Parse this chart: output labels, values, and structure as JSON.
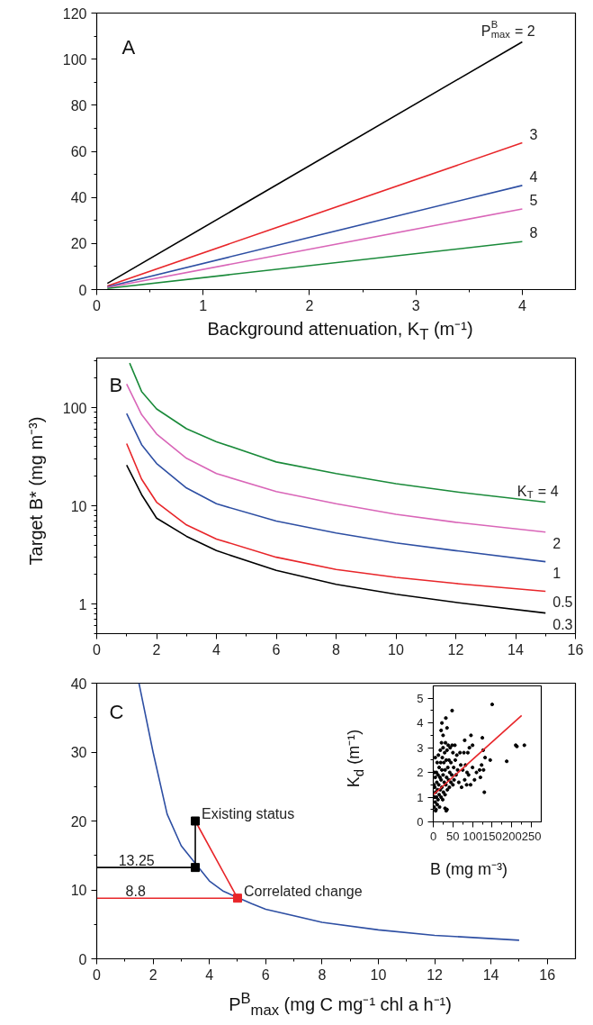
{
  "chart_data": [
    {
      "type": "line",
      "title": "A",
      "xlabel": "Background attenuation, K$_{T}$ (m⁻¹)",
      "xlim": [
        0,
        4.5
      ],
      "ylim": [
        0,
        120
      ],
      "xticks": [
        0,
        1,
        2,
        3,
        4
      ],
      "yticks": [
        0,
        20,
        40,
        60,
        80,
        100,
        120
      ],
      "series": [
        {
          "name": "P$^{B}$$_{max}$ = 2",
          "color": "#000000",
          "x": [
            0.1,
            4
          ],
          "values": [
            2.7,
            107.5
          ]
        },
        {
          "name": "3",
          "color": "#e8262a",
          "x": [
            0.1,
            4
          ],
          "values": [
            1.6,
            63.7
          ]
        },
        {
          "name": "4",
          "color": "#2e4fa3",
          "x": [
            0.1,
            4
          ],
          "values": [
            1.2,
            45.2
          ]
        },
        {
          "name": "5",
          "color": "#d966b8",
          "x": [
            0.1,
            4
          ],
          "values": [
            0.9,
            35
          ]
        },
        {
          "name": "8",
          "color": "#1a8a3a",
          "x": [
            0.1,
            4
          ],
          "values": [
            0.5,
            20.8
          ]
        }
      ]
    },
    {
      "type": "line",
      "title": "B",
      "ylabel": "Target B* (mg m⁻³)",
      "log": true,
      "xlim": [
        0,
        16
      ],
      "ylim": [
        0.5,
        320
      ],
      "xticks": [
        0,
        2,
        4,
        6,
        8,
        10,
        12,
        14,
        16
      ],
      "yticks": [
        1,
        10,
        100
      ],
      "series": [
        {
          "name": "K$_{T}$ = 4",
          "color": "#1a8a3a",
          "x": [
            1.1,
            1.5,
            2,
            3,
            4,
            6,
            8,
            10,
            12,
            15
          ],
          "values": [
            284,
            146,
            97,
            61,
            45,
            28,
            21.3,
            16.8,
            13.9,
            10.9
          ]
        },
        {
          "name": "2",
          "color": "#d966b8",
          "x": [
            1,
            1.5,
            2,
            3,
            4,
            6,
            8,
            10,
            12,
            15
          ],
          "values": [
            174,
            85,
            54,
            30.5,
            21.3,
            14,
            10.5,
            8.2,
            6.8,
            5.4
          ]
        },
        {
          "name": "1",
          "color": "#2e4fa3",
          "x": [
            1,
            1.5,
            2,
            3,
            4,
            6,
            8,
            10,
            12,
            15
          ],
          "values": [
            87,
            42,
            27,
            15.2,
            10.5,
            7,
            5.3,
            4.2,
            3.5,
            2.7
          ]
        },
        {
          "name": "0.5",
          "color": "#e8262a",
          "x": [
            1,
            1.5,
            2,
            3,
            4,
            6,
            8,
            10,
            12,
            15
          ],
          "values": [
            43,
            18.7,
            10.9,
            6.4,
            4.6,
            3.0,
            2.25,
            1.87,
            1.62,
            1.35
          ]
        },
        {
          "name": "0.3",
          "color": "#000000",
          "x": [
            1,
            1.5,
            2,
            3,
            4,
            6,
            8,
            10,
            12,
            15
          ],
          "values": [
            26,
            13,
            7.5,
            4.9,
            3.5,
            2.2,
            1.59,
            1.26,
            1.04,
            0.81
          ]
        }
      ]
    },
    {
      "type": "line",
      "title": "C",
      "xlabel": "P$^{B}$$_{max}$ (mg C mg⁻¹ chl a h⁻¹)",
      "xlim": [
        0,
        17
      ],
      "ylim": [
        0,
        40
      ],
      "xticks": [
        0,
        2,
        4,
        6,
        8,
        10,
        12,
        14,
        16
      ],
      "yticks": [
        0,
        10,
        20,
        30,
        40
      ],
      "annotations": [
        {
          "text": "Existing status",
          "x": 3.5,
          "y": 20
        },
        {
          "text": "Correlated change",
          "x": 5,
          "y": 8.8
        },
        {
          "text": "13.25",
          "x": 0.55,
          "y": 13.25
        },
        {
          "text": "8.8",
          "x": 0.8,
          "y": 8.8
        }
      ],
      "series": [
        {
          "color": "#2e4fa3",
          "x": [
            1.5,
            2,
            2.5,
            3,
            4,
            4.5,
            5.5,
            6,
            8,
            10,
            12,
            15
          ],
          "values": [
            40,
            30,
            21,
            16.4,
            11.3,
            9.8,
            8.0,
            7.2,
            5.3,
            4.2,
            3.4,
            2.7
          ]
        },
        {
          "color": "#000000",
          "x": [
            0,
            3.5,
            3.5
          ],
          "values": [
            13.25,
            13.25,
            20
          ]
        },
        {
          "color": "#e8262a",
          "x": [
            0,
            5,
            3.5
          ],
          "values": [
            8.8,
            8.8,
            20
          ]
        },
        {
          "type": "scatter",
          "marker": "square",
          "color": "#000000",
          "x": [
            3.5,
            3.5
          ],
          "values": [
            20,
            13.25
          ]
        },
        {
          "type": "scatter",
          "marker": "square",
          "color": "#e8262a",
          "x": [
            5
          ],
          "values": [
            8.8
          ]
        }
      ]
    },
    {
      "type": "scatter",
      "xlabel": "B (mg m⁻³)",
      "ylabel": "K$_{d}$ (m⁻¹)",
      "xlim": [
        0,
        275
      ],
      "ylim": [
        0,
        5.5
      ],
      "xticks": [
        0,
        50,
        100,
        150,
        200,
        250
      ],
      "yticks": [
        0,
        1,
        2,
        3,
        4,
        5
      ],
      "series": [
        {
          "color": "#000000",
          "marker": "circle",
          "x": [
            2,
            3,
            4,
            5,
            5,
            6,
            7,
            8,
            8,
            9,
            10,
            10,
            11,
            12,
            12,
            13,
            14,
            15,
            15,
            16,
            17,
            18,
            18,
            19,
            20,
            20,
            21,
            22,
            22,
            23,
            24,
            25,
            25,
            26,
            27,
            28,
            29,
            30,
            30,
            31,
            32,
            33,
            34,
            35,
            35,
            36,
            37,
            38,
            39,
            40,
            41,
            42,
            43,
            45,
            45,
            47,
            48,
            48,
            50,
            50,
            52,
            53,
            55,
            56,
            58,
            60,
            62,
            65,
            68,
            70,
            72,
            75,
            78,
            80,
            80,
            82,
            85,
            86,
            88,
            90,
            92,
            95,
            96,
            100,
            100,
            105,
            110,
            118,
            120,
            123,
            125,
            127,
            128,
            130,
            132,
            145,
            150,
            187,
            210,
            213,
            232,
            20,
            22,
            32,
            35,
            25,
            5,
            3,
            2,
            1,
            6,
            30,
            33
          ],
          "values": [
            0.6,
            1.0,
            1.4,
            0.8,
            1.8,
            1.2,
            0.5,
            2.0,
            1.0,
            1.6,
            0.7,
            2.4,
            1.3,
            1.9,
            0.9,
            2.7,
            1.5,
            1.1,
            2.2,
            0.6,
            1.8,
            2.9,
            1.3,
            2.4,
            1.0,
            1.7,
            3.2,
            2.1,
            1.4,
            2.6,
            0.9,
            1.9,
            3.0,
            1.2,
            2.4,
            1.6,
            2.8,
            1.1,
            2.1,
            3.2,
            1.5,
            2.5,
            1.8,
            0.5,
            2.9,
            1.3,
            2.2,
            3.1,
            1.7,
            2.5,
            1.4,
            2.0,
            3.0,
            1.6,
            2.4,
            1.9,
            3.1,
            4.5,
            2.8,
            1.5,
            2.2,
            1.7,
            3.1,
            2.5,
            1.9,
            2.7,
            2.1,
            1.6,
            2.8,
            2.3,
            1.4,
            2.1,
            2.8,
            1.7,
            3.3,
            2.3,
            1.5,
            2.0,
            2.8,
            1.9,
            3.0,
            1.5,
            3.5,
            2.2,
            3.1,
            1.7,
            2.0,
            2.1,
            1.8,
            2.3,
            3.4,
            2.9,
            2.1,
            1.2,
            2.6,
            2.5,
            4.75,
            2.45,
            3.1,
            3.05,
            3.1,
            3.7,
            4.0,
            4.2,
            3.8,
            3.5,
            2.6,
            2.0,
            1.5,
            1.0,
            0.45,
            0.55,
            0.45
          ]
        },
        {
          "type": "line",
          "color": "#e8262a",
          "x": [
            0,
            225
          ],
          "values": [
            1.1,
            4.3
          ]
        }
      ]
    }
  ]
}
